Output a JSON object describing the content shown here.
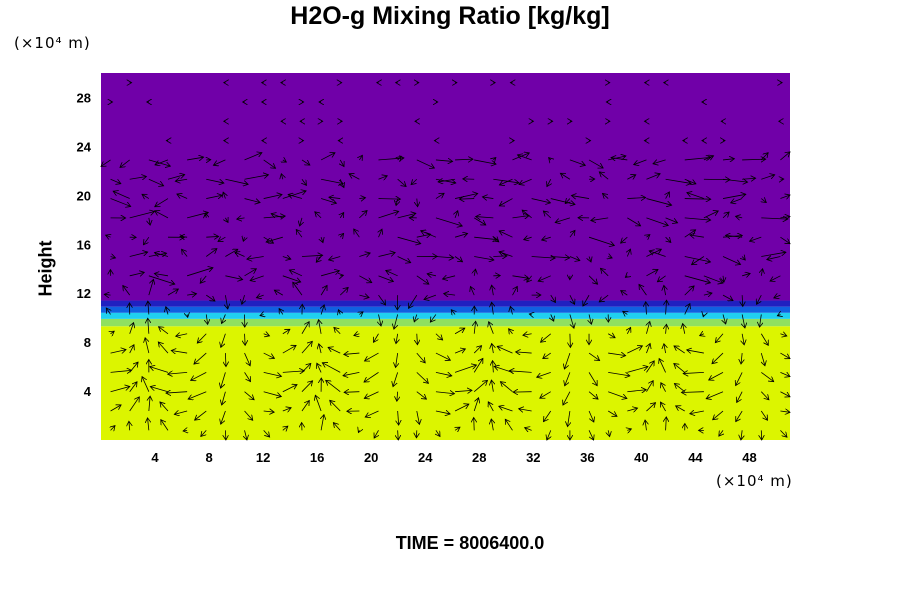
{
  "chart_data": {
    "type": "heatmap",
    "title": "H2O-g Mixing Ratio [kg/kg]",
    "ylabel": "Height",
    "xlabel": "",
    "x_unit": "(×10⁴ m)",
    "y_unit": "(×10⁴ m)",
    "xlim": [
      0,
      51
    ],
    "ylim": [
      0,
      30
    ],
    "x_ticks": [
      4,
      8,
      12,
      16,
      20,
      24,
      28,
      32,
      36,
      40,
      44,
      48
    ],
    "y_ticks": [
      4,
      8,
      12,
      16,
      20,
      24,
      28
    ],
    "x_tick_labels": [
      "4",
      "8",
      "12",
      "16",
      "20",
      "24",
      "28",
      "32",
      "36",
      "40",
      "44",
      "48"
    ],
    "y_tick_labels": [
      "4",
      "8",
      "12",
      "16",
      "20",
      "24",
      "28"
    ],
    "time_label": "TIME = 8006400.0",
    "layers": [
      {
        "y_from": 0,
        "y_to": 9.3,
        "color": "#dcf500"
      },
      {
        "y_from": 9.3,
        "y_to": 9.9,
        "color": "#90e060"
      },
      {
        "y_from": 9.9,
        "y_to": 10.4,
        "color": "#20d0f0"
      },
      {
        "y_from": 10.4,
        "y_to": 10.9,
        "color": "#1060e0"
      },
      {
        "y_from": 10.9,
        "y_to": 11.4,
        "color": "#2020c0"
      },
      {
        "y_from": 11.4,
        "y_to": 30,
        "color": "#7000a8"
      }
    ],
    "vector_field": {
      "nx": 36,
      "ny": 19,
      "seed": 7,
      "arrow_color": "#000000"
    },
    "grid": false,
    "legend": "none"
  }
}
